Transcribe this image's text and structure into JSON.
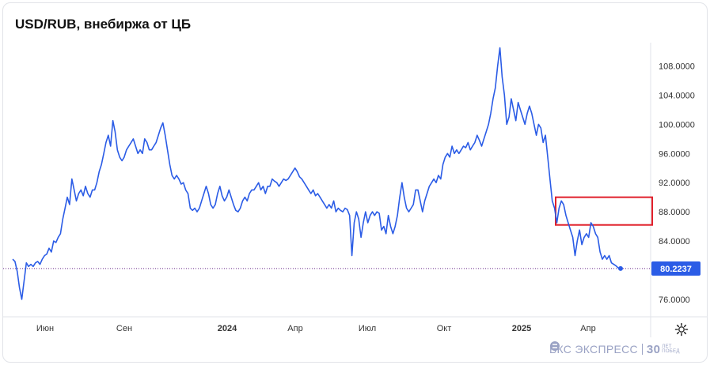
{
  "title": "USD/RUB, внебиржа от ЦБ",
  "brand": {
    "name": "БКС ЭКСПРЕСС",
    "years_num": "30",
    "years_text_1": "ЛЕТ",
    "years_text_2": "ПОБЕД"
  },
  "colors": {
    "line": "#2b5ce6",
    "current_label_bg": "#2b5ce6",
    "highlight_box": "#e0202b",
    "price_dotted": "#6a2b8a"
  },
  "icons": {
    "settings": "gear-icon",
    "brand_logo": "bks-logo-icon"
  },
  "chart_data": {
    "type": "line",
    "title": "USD/RUB, внебиржа от ЦБ",
    "xlabel": "",
    "ylabel": "",
    "ylim": [
      73.6,
      111.2
    ],
    "y_ticks": [
      "108.0000",
      "104.0000",
      "100.0000",
      "96.0000",
      "92.0000",
      "88.0000",
      "84.0000",
      "76.0000"
    ],
    "x_ticks": [
      "Июн",
      "Сен",
      "2024",
      "Апр",
      "Июл",
      "Окт",
      "2025",
      "Апр"
    ],
    "x_bold_ticks": [
      "2024",
      "2025"
    ],
    "current_value": "80.2237",
    "series": [
      {
        "values": [
          81.5,
          81.2,
          79.8,
          77.6,
          76.0,
          78.5,
          81.0,
          80.5,
          80.8,
          80.5,
          81.0,
          81.2,
          80.8,
          81.5,
          82.0,
          82.2,
          83.0,
          82.5,
          84.0,
          83.8,
          84.5,
          85.0,
          87.0,
          88.5,
          90.0,
          89.0,
          92.5,
          91.0,
          89.5,
          90.5,
          91.0,
          90.2,
          91.5,
          90.5,
          90.0,
          91.0,
          91.0,
          92.0,
          93.5,
          94.5,
          96.0,
          97.5,
          98.5,
          97.0,
          100.5,
          99.0,
          96.5,
          95.5,
          95.0,
          95.5,
          96.5,
          97.0,
          97.5,
          98.0,
          97.0,
          96.0,
          96.5,
          96.0,
          98.0,
          97.5,
          96.5,
          96.5,
          97.0,
          97.5,
          98.5,
          99.5,
          100.2,
          98.5,
          96.5,
          94.5,
          93.0,
          92.5,
          93.0,
          92.5,
          91.8,
          92.0,
          91.0,
          90.5,
          88.5,
          88.2,
          88.5,
          88.0,
          88.5,
          89.5,
          90.5,
          91.5,
          90.5,
          89.0,
          88.5,
          89.0,
          90.5,
          91.5,
          90.2,
          89.5,
          90.0,
          91.0,
          90.0,
          89.0,
          88.2,
          88.0,
          88.5,
          89.5,
          90.0,
          89.5,
          90.5,
          91.0,
          91.0,
          91.5,
          92.0,
          91.0,
          91.5,
          90.5,
          91.5,
          91.5,
          92.5,
          92.2,
          92.0,
          91.5,
          92.0,
          92.5,
          92.3,
          92.5,
          93.0,
          93.5,
          94.0,
          93.5,
          92.8,
          92.5,
          92.0,
          91.5,
          91.0,
          90.5,
          91.0,
          90.2,
          90.5,
          90.0,
          89.5,
          89.0,
          88.5,
          89.0,
          88.5,
          89.5,
          88.0,
          88.5,
          88.2,
          88.0,
          88.5,
          88.3,
          87.5,
          82.0,
          86.5,
          88.0,
          87.0,
          84.5,
          86.5,
          88.0,
          86.5,
          87.5,
          88.0,
          87.5,
          88.0,
          87.8,
          85.5,
          86.0,
          85.0,
          87.5,
          86.0,
          85.0,
          86.0,
          87.5,
          90.0,
          92.0,
          90.0,
          88.5,
          88.0,
          88.5,
          89.0,
          91.0,
          91.0,
          89.5,
          88.0,
          89.5,
          90.5,
          91.5,
          92.0,
          92.5,
          92.0,
          93.0,
          92.5,
          94.5,
          95.5,
          96.0,
          95.5,
          97.0,
          96.0,
          96.5,
          96.0,
          96.5,
          97.0,
          96.8,
          97.5,
          96.5,
          97.0,
          97.5,
          98.5,
          97.8,
          97.0,
          98.0,
          99.0,
          100.0,
          101.5,
          103.5,
          105.0,
          108.0,
          110.5,
          106.5,
          104.0,
          100.0,
          101.0,
          103.5,
          102.0,
          100.5,
          103.0,
          102.0,
          101.0,
          100.0,
          101.5,
          102.5,
          101.5,
          100.0,
          98.5,
          100.0,
          99.5,
          97.5,
          98.5,
          95.5,
          92.5,
          89.5,
          88.5,
          86.5,
          88.5,
          89.5,
          89.0,
          87.5,
          86.5,
          85.5,
          84.5,
          82.0,
          84.0,
          85.5,
          83.5,
          84.5,
          85.0,
          84.5,
          86.5,
          86.0,
          85.0,
          84.5,
          82.5,
          81.5,
          82.0,
          81.5,
          82.0,
          81.0,
          80.8,
          80.6,
          80.3,
          80.2237
        ]
      }
    ],
    "highlight_range": [
      86.2,
      90.0
    ],
    "grid": false,
    "legend": "none"
  }
}
